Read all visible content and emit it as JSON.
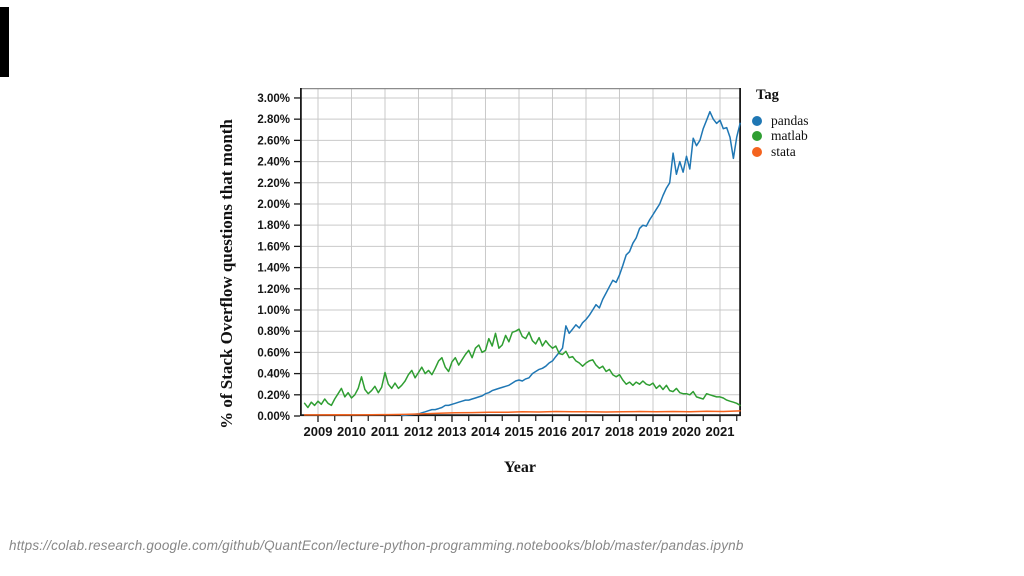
{
  "page": {
    "url_caption": "https://colab.research.google.com/github/QuantEcon/lecture-python-programming.notebooks/blob/master/pandas.ipynb"
  },
  "decor": {
    "left_edge_bar_color": "#000000"
  },
  "chart_data": {
    "type": "line",
    "title": "",
    "xlabel": "Year",
    "ylabel": "% of Stack Overflow questions that month",
    "legend_title": "Tag",
    "legend_position": "right",
    "grid": true,
    "grid_color": "#c9c9c9",
    "xlim": [
      2008.463,
      2021.627
    ],
    "ylim": [
      0,
      3.094
    ],
    "x_ticks": [
      2009,
      2010,
      2011,
      2012,
      2013,
      2014,
      2015,
      2016,
      2017,
      2018,
      2019,
      2020,
      2021
    ],
    "x_minor_tick_offset": 0.5,
    "y_ticks": [
      {
        "value": 0.0,
        "label": "0.00%"
      },
      {
        "value": 0.2,
        "label": "0.20%"
      },
      {
        "value": 0.4,
        "label": "0.40%"
      },
      {
        "value": 0.6,
        "label": "0.60%"
      },
      {
        "value": 0.8,
        "label": "0.80%"
      },
      {
        "value": 1.0,
        "label": "1.00%"
      },
      {
        "value": 1.2,
        "label": "1.20%"
      },
      {
        "value": 1.4,
        "label": "1.40%"
      },
      {
        "value": 1.6,
        "label": "1.60%"
      },
      {
        "value": 1.8,
        "label": "1.80%"
      },
      {
        "value": 2.0,
        "label": "2.00%"
      },
      {
        "value": 2.2,
        "label": "2.20%"
      },
      {
        "value": 2.4,
        "label": "2.40%"
      },
      {
        "value": 2.6,
        "label": "2.60%"
      },
      {
        "value": 2.8,
        "label": "2.80%"
      },
      {
        "value": 3.0,
        "label": "3.00%"
      }
    ],
    "series": [
      {
        "name": "pandas",
        "color": "#1f77b4",
        "start": 2011.5,
        "step": 0.1,
        "values": [
          0.005,
          0.008,
          0.01,
          0.013,
          0.016,
          0.02,
          0.03,
          0.04,
          0.05,
          0.06,
          0.06,
          0.07,
          0.08,
          0.1,
          0.1,
          0.11,
          0.12,
          0.13,
          0.14,
          0.15,
          0.15,
          0.16,
          0.17,
          0.18,
          0.19,
          0.21,
          0.22,
          0.24,
          0.25,
          0.26,
          0.27,
          0.28,
          0.29,
          0.31,
          0.33,
          0.34,
          0.33,
          0.35,
          0.36,
          0.4,
          0.42,
          0.44,
          0.45,
          0.47,
          0.5,
          0.52,
          0.56,
          0.6,
          0.64,
          0.85,
          0.78,
          0.82,
          0.86,
          0.83,
          0.88,
          0.91,
          0.95,
          1.0,
          1.05,
          1.02,
          1.1,
          1.16,
          1.22,
          1.28,
          1.26,
          1.33,
          1.42,
          1.52,
          1.55,
          1.63,
          1.68,
          1.77,
          1.8,
          1.79,
          1.85,
          1.9,
          1.95,
          2.0,
          2.08,
          2.15,
          2.2,
          2.48,
          2.28,
          2.4,
          2.3,
          2.45,
          2.33,
          2.62,
          2.55,
          2.6,
          2.71,
          2.79,
          2.87,
          2.8,
          2.76,
          2.79,
          2.71,
          2.72,
          2.63,
          2.43,
          2.63,
          2.76
        ]
      },
      {
        "name": "matlab",
        "color": "#2f9e32",
        "start": 2008.6,
        "step": 0.1,
        "values": [
          0.12,
          0.08,
          0.13,
          0.1,
          0.14,
          0.11,
          0.16,
          0.12,
          0.1,
          0.16,
          0.21,
          0.26,
          0.18,
          0.22,
          0.17,
          0.2,
          0.26,
          0.37,
          0.25,
          0.21,
          0.24,
          0.28,
          0.22,
          0.27,
          0.41,
          0.3,
          0.26,
          0.31,
          0.26,
          0.29,
          0.33,
          0.39,
          0.43,
          0.36,
          0.41,
          0.46,
          0.4,
          0.43,
          0.39,
          0.45,
          0.52,
          0.55,
          0.46,
          0.42,
          0.51,
          0.55,
          0.48,
          0.53,
          0.58,
          0.62,
          0.55,
          0.64,
          0.67,
          0.6,
          0.62,
          0.73,
          0.66,
          0.78,
          0.64,
          0.67,
          0.76,
          0.7,
          0.79,
          0.8,
          0.82,
          0.75,
          0.73,
          0.79,
          0.71,
          0.68,
          0.74,
          0.66,
          0.71,
          0.67,
          0.64,
          0.66,
          0.59,
          0.58,
          0.61,
          0.55,
          0.56,
          0.52,
          0.5,
          0.47,
          0.5,
          0.52,
          0.53,
          0.48,
          0.45,
          0.47,
          0.42,
          0.44,
          0.39,
          0.37,
          0.39,
          0.34,
          0.3,
          0.32,
          0.29,
          0.32,
          0.3,
          0.33,
          0.3,
          0.29,
          0.31,
          0.26,
          0.29,
          0.25,
          0.29,
          0.24,
          0.23,
          0.26,
          0.22,
          0.21,
          0.21,
          0.2,
          0.23,
          0.18,
          0.17,
          0.16,
          0.21,
          0.2,
          0.19,
          0.18,
          0.18,
          0.17,
          0.15,
          0.14,
          0.13,
          0.12,
          0.1
        ]
      },
      {
        "name": "stata",
        "color": "#f4631e",
        "start": 2008.6,
        "step": 0.5,
        "values": [
          0.01,
          0.01,
          0.012,
          0.01,
          0.012,
          0.013,
          0.015,
          0.02,
          0.025,
          0.03,
          0.032,
          0.035,
          0.035,
          0.04,
          0.038,
          0.042,
          0.04,
          0.04,
          0.038,
          0.04,
          0.042,
          0.04,
          0.042,
          0.04,
          0.045,
          0.042,
          0.048
        ]
      }
    ]
  }
}
